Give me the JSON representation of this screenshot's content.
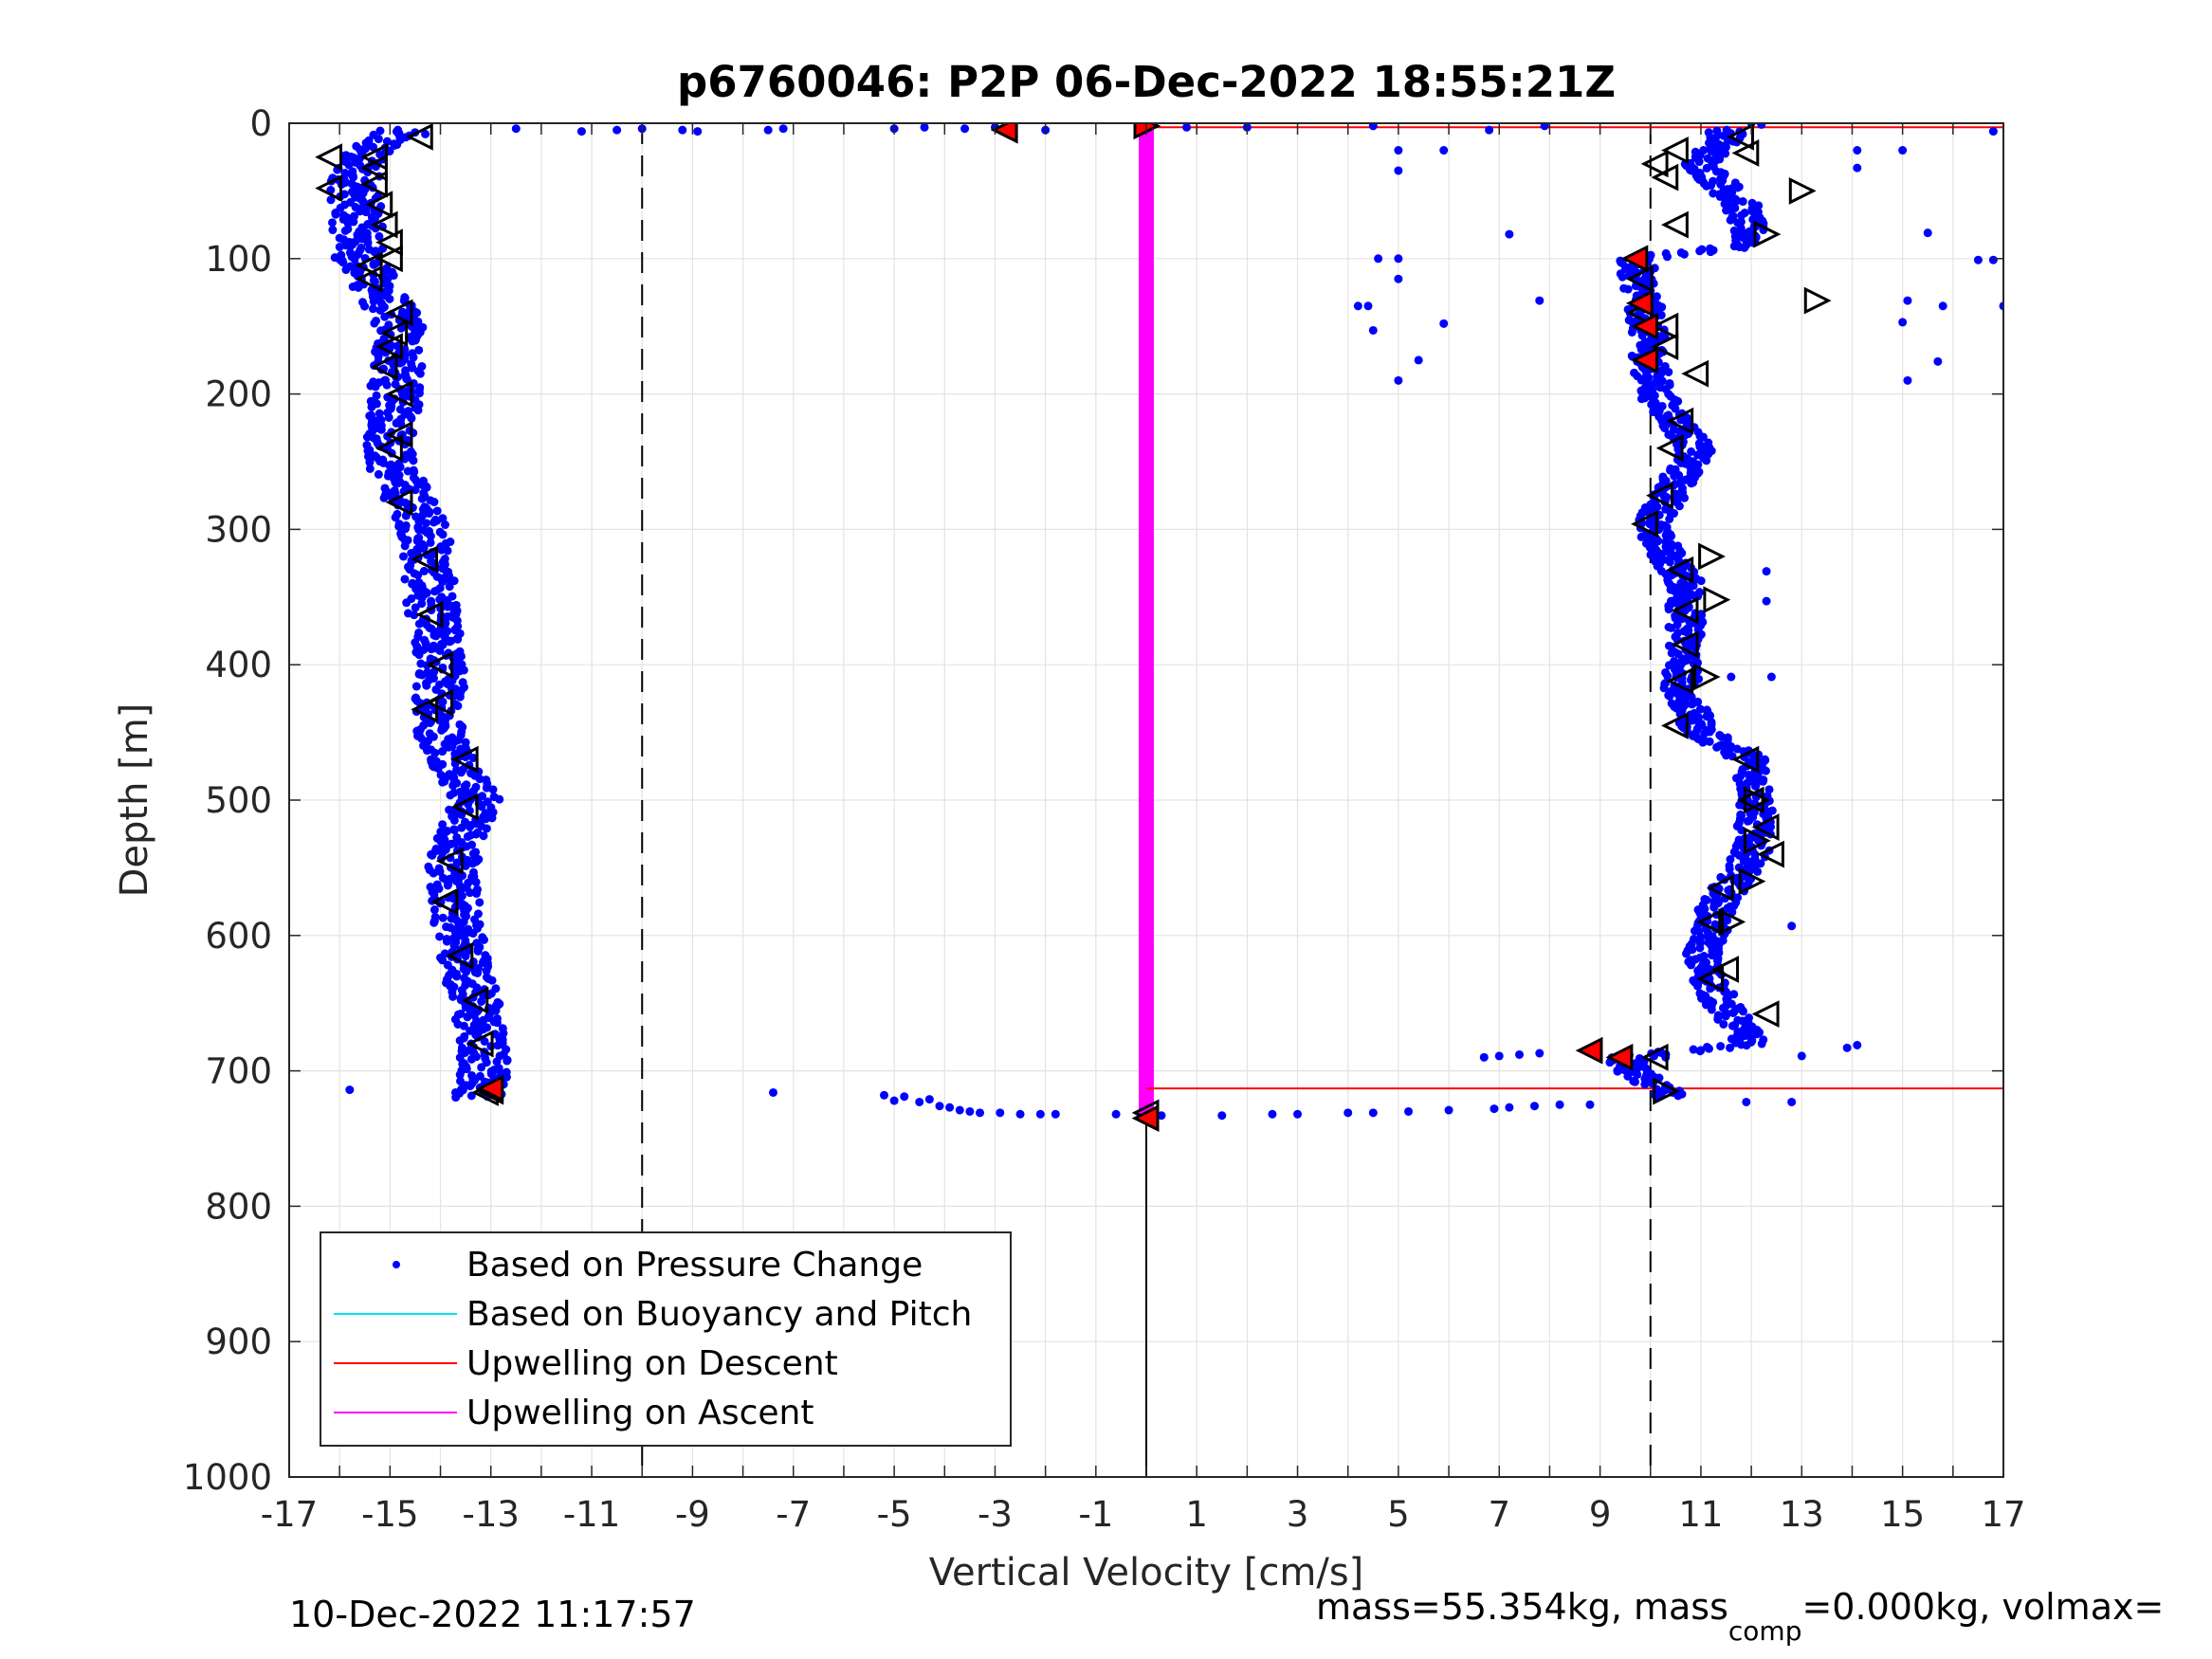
{
  "chart_data": {
    "type": "scatter",
    "title": "p6760046: P2P 06-Dec-2022 18:55:21Z",
    "xlabel": "Vertical Velocity [cm/s]",
    "ylabel": "Depth [m]",
    "xlim": [
      -17,
      17
    ],
    "ylim": [
      1000,
      0
    ],
    "y_reversed": true,
    "grid": true,
    "x_ticks": [
      "-17",
      "-15",
      "-13",
      "-11",
      "-9",
      "-7",
      "-5",
      "-3",
      "-1",
      "1",
      "3",
      "5",
      "7",
      "9",
      "11",
      "13",
      "15",
      "17"
    ],
    "y_ticks": [
      "0",
      "100",
      "200",
      "300",
      "400",
      "500",
      "600",
      "700",
      "800",
      "900",
      "1000"
    ],
    "legend": {
      "placement": "bottom-left",
      "entries": [
        {
          "label": "Based on Pressure Change",
          "color": "#0000ff",
          "style": "dot"
        },
        {
          "label": "Based on Buoyancy and Pitch",
          "color": "#00e5ee",
          "style": "line"
        },
        {
          "label": "Upwelling on Descent",
          "color": "#ff0000",
          "style": "line"
        },
        {
          "label": "Upwelling on Ascent",
          "color": "#ff00ff",
          "style": "line"
        }
      ]
    },
    "reference_lines": {
      "dashed_x": [
        -10,
        10
      ],
      "solid_x": 0
    },
    "series": [
      {
        "name": "Based on Pressure Change",
        "color": "#0000ff",
        "marker": "dot",
        "segments": [
          {
            "depth_range": [
              5,
              720
            ],
            "velocity_profile": [
              [
                10,
                -15.0
              ],
              [
                25,
                -15.6
              ],
              [
                50,
                -15.7
              ],
              [
                100,
                -15.6
              ],
              [
                150,
                -14.8
              ],
              [
                200,
                -14.9
              ],
              [
                250,
                -15.0
              ],
              [
                300,
                -14.3
              ],
              [
                350,
                -14.2
              ],
              [
                400,
                -14.0
              ],
              [
                450,
                -14.0
              ],
              [
                500,
                -13.3
              ],
              [
                550,
                -13.8
              ],
              [
                600,
                -13.6
              ],
              [
                650,
                -13.3
              ],
              [
                700,
                -13.1
              ],
              [
                715,
                -13.2
              ]
            ],
            "spread": 0.5
          },
          {
            "depth_range": [
              5,
              720
            ],
            "velocity_profile": [
              [
                10,
                11.5
              ],
              [
                30,
                11.0
              ],
              [
                60,
                11.8
              ],
              [
                90,
                12.0
              ],
              [
                100,
                9.7
              ],
              [
                140,
                9.9
              ],
              [
                180,
                10.0
              ],
              [
                200,
                10.1
              ],
              [
                240,
                10.9
              ],
              [
                280,
                10.3
              ],
              [
                300,
                10.0
              ],
              [
                340,
                10.7
              ],
              [
                380,
                10.7
              ],
              [
                420,
                10.6
              ],
              [
                450,
                11.0
              ],
              [
                470,
                12.0
              ],
              [
                500,
                12.1
              ],
              [
                540,
                12.0
              ],
              [
                580,
                11.3
              ],
              [
                620,
                11.0
              ],
              [
                650,
                11.4
              ],
              [
                680,
                12.0
              ],
              [
                690,
                9.5
              ],
              [
                700,
                9.6
              ],
              [
                715,
                10.3
              ]
            ],
            "spread": 0.35
          }
        ],
        "surface_points": [
          [
            -14.3,
            8
          ],
          [
            -12.5,
            4
          ],
          [
            -11.2,
            6
          ],
          [
            -10.5,
            5
          ],
          [
            -10.0,
            4
          ],
          [
            -9.2,
            5
          ],
          [
            -8.9,
            6
          ],
          [
            -7.5,
            5
          ],
          [
            -7.2,
            4
          ],
          [
            -5.0,
            4
          ],
          [
            -4.4,
            3
          ],
          [
            -3.6,
            4
          ],
          [
            -3.0,
            3
          ],
          [
            -2.0,
            5
          ],
          [
            0.8,
            3
          ],
          [
            2.0,
            3
          ],
          [
            4.5,
            2
          ],
          [
            6.8,
            5
          ],
          [
            7.9,
            2
          ],
          [
            12.0,
            0
          ],
          [
            12.2,
            1
          ],
          [
            16.8,
            6
          ]
        ],
        "outliers": [
          [
            4.6,
            100
          ],
          [
            5.0,
            100
          ],
          [
            5.0,
            115
          ],
          [
            4.2,
            135
          ],
          [
            4.4,
            135
          ],
          [
            4.5,
            153
          ],
          [
            5.9,
            148
          ],
          [
            5.4,
            175
          ],
          [
            5.0,
            190
          ],
          [
            7.2,
            82
          ],
          [
            7.8,
            131
          ],
          [
            5.0,
            20
          ],
          [
            5.0,
            35
          ],
          [
            5.9,
            20
          ],
          [
            14.1,
            20
          ],
          [
            14.1,
            33
          ],
          [
            15.0,
            20
          ],
          [
            15.5,
            81
          ],
          [
            15.1,
            131
          ],
          [
            15.0,
            147
          ],
          [
            15.1,
            190
          ],
          [
            15.8,
            135
          ],
          [
            16.5,
            101
          ],
          [
            16.8,
            101
          ],
          [
            17.0,
            135
          ],
          [
            15.7,
            176
          ],
          [
            12.3,
            331
          ],
          [
            12.3,
            353
          ],
          [
            12.4,
            409
          ],
          [
            11.6,
            409
          ],
          [
            12.8,
            593
          ],
          [
            13.9,
            683
          ],
          [
            14.1,
            681
          ],
          [
            13.0,
            689
          ],
          [
            -15.8,
            714
          ],
          [
            -13.7,
            716
          ],
          [
            -7.4,
            716
          ]
        ],
        "bottom_turn": [
          [
            -5.2,
            718
          ],
          [
            -5.0,
            722
          ],
          [
            -4.8,
            719
          ],
          [
            -4.5,
            723
          ],
          [
            -4.3,
            721
          ],
          [
            -4.1,
            726
          ],
          [
            -3.9,
            727
          ],
          [
            -3.7,
            729
          ],
          [
            -3.5,
            730
          ],
          [
            -3.3,
            731
          ],
          [
            -2.9,
            731
          ],
          [
            -2.5,
            732
          ],
          [
            -2.1,
            732
          ],
          [
            -1.8,
            732
          ],
          [
            -0.6,
            732
          ],
          [
            0.3,
            733
          ],
          [
            1.5,
            733
          ],
          [
            2.5,
            732
          ],
          [
            3.0,
            732
          ],
          [
            4.0,
            731
          ],
          [
            4.5,
            731
          ],
          [
            5.2,
            730
          ],
          [
            6.0,
            729
          ],
          [
            6.9,
            728
          ],
          [
            7.2,
            727
          ],
          [
            7.7,
            726
          ],
          [
            8.2,
            725
          ],
          [
            8.8,
            725
          ],
          [
            6.7,
            690
          ],
          [
            7.0,
            689
          ],
          [
            7.4,
            688
          ],
          [
            7.8,
            687
          ],
          [
            11.9,
            723
          ],
          [
            12.8,
            723
          ],
          [
            10.3,
            690
          ]
        ]
      },
      {
        "name": "Upwelling on Descent",
        "color": "#ff0000",
        "type": "step",
        "points": [
          [
            0.0,
            3
          ],
          [
            17.0,
            3
          ],
          [
            0.0,
            713
          ],
          [
            17.0,
            713
          ]
        ]
      },
      {
        "name": "Upwelling on Ascent",
        "color": "#ff00ff",
        "type": "band",
        "x_range": [
          -0.15,
          0.15
        ],
        "depth_range": [
          3,
          735
        ]
      },
      {
        "name": "triangle_markers",
        "left_open": [
          [
            -16.2,
            25
          ],
          [
            -16.2,
            48
          ],
          [
            -15.3,
            25
          ],
          [
            -15.3,
            33
          ],
          [
            -15.3,
            45
          ],
          [
            -15.2,
            60
          ],
          [
            -15.1,
            75
          ],
          [
            -15.0,
            88
          ],
          [
            -15.0,
            100
          ],
          [
            -15.4,
            105
          ],
          [
            -15.4,
            115
          ],
          [
            -14.8,
            140
          ],
          [
            -14.9,
            155
          ],
          [
            -15.0,
            165
          ],
          [
            -15.1,
            180
          ],
          [
            -14.8,
            200
          ],
          [
            -15.0,
            240
          ],
          [
            -14.8,
            230
          ],
          [
            -14.8,
            280
          ],
          [
            -14.3,
            322
          ],
          [
            -14.2,
            363
          ],
          [
            -14.0,
            400
          ],
          [
            -14.0,
            428
          ],
          [
            -14.3,
            433
          ],
          [
            -13.5,
            470
          ],
          [
            -13.5,
            505
          ],
          [
            -13.8,
            545
          ],
          [
            -13.9,
            575
          ],
          [
            -13.6,
            615
          ],
          [
            -13.3,
            648
          ],
          [
            -13.2,
            680
          ],
          [
            -13.0,
            715
          ],
          [
            -14.4,
            10
          ],
          [
            10.5,
            20
          ],
          [
            10.1,
            30
          ],
          [
            10.3,
            40
          ],
          [
            10.5,
            75
          ],
          [
            11.8,
            10
          ],
          [
            11.9,
            22
          ],
          [
            9.8,
            115
          ],
          [
            9.8,
            140
          ],
          [
            10.3,
            150
          ],
          [
            10.3,
            165
          ],
          [
            10.9,
            185
          ],
          [
            10.6,
            220
          ],
          [
            10.4,
            240
          ],
          [
            10.2,
            275
          ],
          [
            9.9,
            296
          ],
          [
            10.6,
            330
          ],
          [
            10.7,
            360
          ],
          [
            10.7,
            385
          ],
          [
            10.6,
            412
          ],
          [
            10.5,
            445
          ],
          [
            11.9,
            470
          ],
          [
            12.0,
            500
          ],
          [
            12.3,
            520
          ],
          [
            12.4,
            540
          ],
          [
            11.4,
            565
          ],
          [
            11.2,
            590
          ],
          [
            11.5,
            625
          ],
          [
            11.2,
            632
          ],
          [
            12.3,
            658
          ],
          [
            10.1,
            690
          ],
          [
            -13.1,
            716
          ],
          [
            0.0,
            731
          ]
        ],
        "right_open": [
          [
            13.0,
            50
          ],
          [
            12.3,
            82
          ],
          [
            13.3,
            131
          ],
          [
            11.2,
            320
          ],
          [
            11.3,
            352
          ],
          [
            11.1,
            409
          ],
          [
            11.6,
            590
          ],
          [
            12.1,
            500
          ],
          [
            12.1,
            530
          ],
          [
            12.0,
            560
          ],
          [
            10.3,
            715
          ]
        ],
        "filled_red_left": [
          [
            -2.8,
            5
          ],
          [
            9.7,
            100
          ],
          [
            9.8,
            133
          ],
          [
            9.9,
            150
          ],
          [
            9.9,
            175
          ],
          [
            8.8,
            685
          ],
          [
            9.4,
            690
          ],
          [
            -13.0,
            713
          ],
          [
            0.0,
            735
          ]
        ],
        "filled_red_right": [
          [
            0.0,
            2
          ]
        ]
      }
    ]
  },
  "footer": {
    "timestamp": "10-Dec-2022 11:17:57",
    "mass_text": "mass=55.354kg, mass",
    "sub": "comp",
    "mass_comp_text": "=0.000kg, volmax="
  }
}
